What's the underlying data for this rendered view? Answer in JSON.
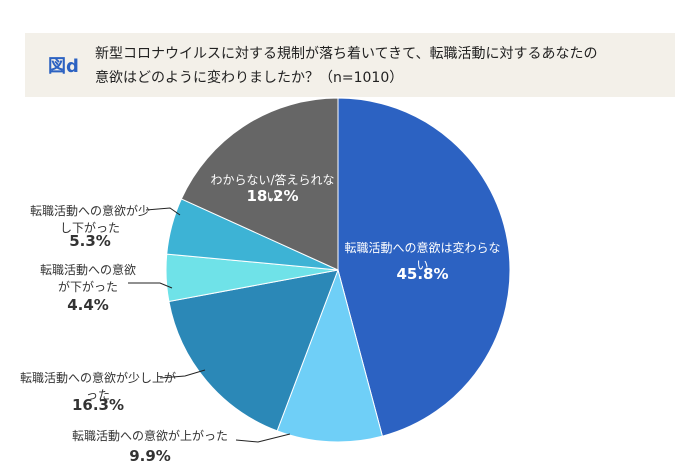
{
  "chart_data": {
    "type": "pie",
    "figure_label": "図d",
    "title": [
      "新型コロナウイルスに対する規制が落ち着いてきて、転職活動に対するあなたの",
      "意欲はどのように変わりましたか？（n=1010）"
    ],
    "categories": [
      "転職活動への意欲は変わらない",
      "転職活動への意欲が上がった",
      "転職活動への意欲が少し上がった",
      "転職活動への意欲が下がった",
      "転職活動への意欲が少し下がった",
      "わからない/答えられない"
    ],
    "values": [
      45.8,
      9.9,
      16.3,
      4.4,
      5.3,
      18.2
    ],
    "value_labels": [
      "45.8%",
      "9.9%",
      "16.3%",
      "4.4%",
      "5.3%",
      "18.2%"
    ],
    "colors": [
      "#2c62c2",
      "#6fcff7",
      "#2b88b7",
      "#6fe2e8",
      "#3db3d5",
      "#666666"
    ]
  }
}
